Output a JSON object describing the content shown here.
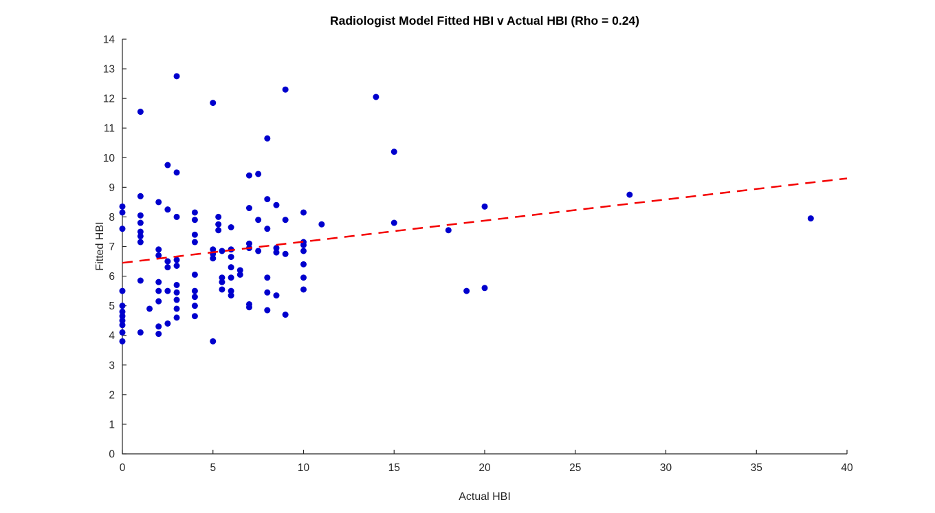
{
  "chart_data": {
    "type": "scatter",
    "title": "Radiologist Model Fitted HBI v Actual HBI (Rho = 0.24)",
    "xlabel": "Actual HBI",
    "ylabel": "Fitted HBI",
    "xlim": [
      0,
      40
    ],
    "ylim": [
      0,
      14
    ],
    "xticks": [
      0,
      5,
      10,
      15,
      20,
      25,
      30,
      35,
      40
    ],
    "yticks": [
      0,
      1,
      2,
      3,
      4,
      5,
      6,
      7,
      8,
      9,
      10,
      11,
      12,
      13,
      14
    ],
    "grid": false,
    "legend": null,
    "background": "#ffffff",
    "axis_color": "#262626",
    "series": [
      {
        "name": "fitted-vs-actual-points",
        "type": "scatter",
        "marker": "circle",
        "marker_color": "#0000cd",
        "marker_radius": 4.5,
        "points": [
          [
            0,
            8.35
          ],
          [
            0,
            8.15
          ],
          [
            0,
            7.6
          ],
          [
            0,
            5.5
          ],
          [
            0,
            5.0
          ],
          [
            0,
            4.8
          ],
          [
            0,
            4.65
          ],
          [
            0,
            4.5
          ],
          [
            0,
            4.35
          ],
          [
            0,
            4.1
          ],
          [
            0,
            3.8
          ],
          [
            1,
            11.55
          ],
          [
            1,
            8.7
          ],
          [
            1,
            8.05
          ],
          [
            1,
            7.8
          ],
          [
            1,
            7.5
          ],
          [
            1,
            7.35
          ],
          [
            1,
            7.15
          ],
          [
            1,
            5.85
          ],
          [
            1,
            4.1
          ],
          [
            1.5,
            4.9
          ],
          [
            2,
            8.5
          ],
          [
            2,
            6.9
          ],
          [
            2,
            6.7
          ],
          [
            2,
            5.8
          ],
          [
            2,
            5.5
          ],
          [
            2,
            5.15
          ],
          [
            2,
            4.3
          ],
          [
            2,
            4.05
          ],
          [
            2.5,
            9.75
          ],
          [
            2.5,
            8.25
          ],
          [
            2.5,
            6.5
          ],
          [
            2.5,
            6.3
          ],
          [
            2.5,
            5.5
          ],
          [
            2.5,
            4.4
          ],
          [
            3,
            12.75
          ],
          [
            3,
            9.5
          ],
          [
            3,
            8.0
          ],
          [
            3,
            6.55
          ],
          [
            3,
            6.35
          ],
          [
            3,
            5.7
          ],
          [
            3,
            5.45
          ],
          [
            3,
            5.2
          ],
          [
            3,
            4.9
          ],
          [
            3,
            4.6
          ],
          [
            4,
            8.15
          ],
          [
            4,
            7.9
          ],
          [
            4,
            7.4
          ],
          [
            4,
            7.15
          ],
          [
            4,
            6.05
          ],
          [
            4,
            5.5
          ],
          [
            4,
            5.3
          ],
          [
            4,
            5.0
          ],
          [
            4,
            4.65
          ],
          [
            5,
            11.85
          ],
          [
            5,
            6.9
          ],
          [
            5,
            6.75
          ],
          [
            5,
            6.6
          ],
          [
            5,
            3.8
          ],
          [
            5.3,
            8.0
          ],
          [
            5.3,
            7.75
          ],
          [
            5.3,
            7.55
          ],
          [
            5.5,
            6.85
          ],
          [
            5.5,
            5.95
          ],
          [
            5.5,
            5.8
          ],
          [
            5.5,
            5.55
          ],
          [
            6,
            7.65
          ],
          [
            6,
            6.9
          ],
          [
            6,
            6.65
          ],
          [
            6,
            6.3
          ],
          [
            6,
            5.95
          ],
          [
            6,
            5.5
          ],
          [
            6,
            5.35
          ],
          [
            6.5,
            6.2
          ],
          [
            6.5,
            6.05
          ],
          [
            7,
            9.4
          ],
          [
            7,
            8.3
          ],
          [
            7,
            7.1
          ],
          [
            7,
            6.95
          ],
          [
            7,
            5.05
          ],
          [
            7,
            4.95
          ],
          [
            7.5,
            9.45
          ],
          [
            7.5,
            7.9
          ],
          [
            7.5,
            6.85
          ],
          [
            8,
            10.65
          ],
          [
            8,
            8.6
          ],
          [
            8,
            7.6
          ],
          [
            8,
            5.95
          ],
          [
            8,
            5.45
          ],
          [
            8,
            4.85
          ],
          [
            8.5,
            8.4
          ],
          [
            8.5,
            6.95
          ],
          [
            8.5,
            6.8
          ],
          [
            8.5,
            5.35
          ],
          [
            9,
            12.3
          ],
          [
            9,
            7.9
          ],
          [
            9,
            6.75
          ],
          [
            9,
            4.7
          ],
          [
            10,
            8.15
          ],
          [
            10,
            7.15
          ],
          [
            10,
            7.05
          ],
          [
            10,
            6.85
          ],
          [
            10,
            6.4
          ],
          [
            10,
            5.95
          ],
          [
            10,
            5.55
          ],
          [
            11,
            7.75
          ],
          [
            14,
            12.05
          ],
          [
            15,
            10.2
          ],
          [
            15,
            7.8
          ],
          [
            18,
            7.55
          ],
          [
            19,
            5.5
          ],
          [
            20,
            8.35
          ],
          [
            20,
            5.6
          ],
          [
            28,
            8.75
          ],
          [
            38,
            7.95
          ]
        ]
      }
    ],
    "trend_line": {
      "name": "linear-fit-line",
      "style": "dashed",
      "color": "#f40000",
      "line_width": 2.5,
      "x": [
        0,
        40
      ],
      "y": [
        6.45,
        9.3
      ]
    }
  }
}
